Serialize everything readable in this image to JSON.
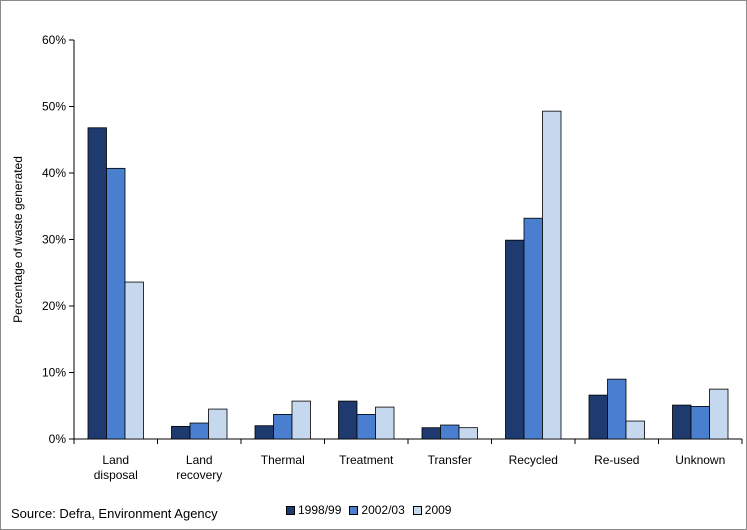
{
  "chart_data": {
    "type": "bar",
    "ylabel": "Percentage of waste generated",
    "ylim": [
      0,
      60
    ],
    "yticks": [
      "0%",
      "10%",
      "20%",
      "30%",
      "40%",
      "50%",
      "60%"
    ],
    "categories": [
      [
        "Land",
        "disposal"
      ],
      [
        "Land",
        "recovery"
      ],
      [
        "Thermal"
      ],
      [
        "Treatment"
      ],
      [
        "Transfer"
      ],
      [
        "Recycled"
      ],
      [
        "Re-used"
      ],
      [
        "Unknown"
      ]
    ],
    "series": [
      {
        "name": "1998/99",
        "color": "#1f3a6e",
        "values": [
          46.8,
          1.9,
          2.0,
          5.7,
          1.7,
          29.9,
          6.6,
          5.1
        ]
      },
      {
        "name": "2002/03",
        "color": "#4a7fcf",
        "values": [
          40.7,
          2.4,
          3.7,
          3.7,
          2.1,
          33.2,
          9.0,
          4.9
        ]
      },
      {
        "name": "2009",
        "color": "#c6d8ee",
        "values": [
          23.6,
          4.5,
          5.7,
          4.8,
          1.7,
          49.3,
          2.7,
          7.5
        ]
      }
    ],
    "grid": false,
    "legend": "bottom"
  },
  "source": "Source: Defra, Environment Agency"
}
